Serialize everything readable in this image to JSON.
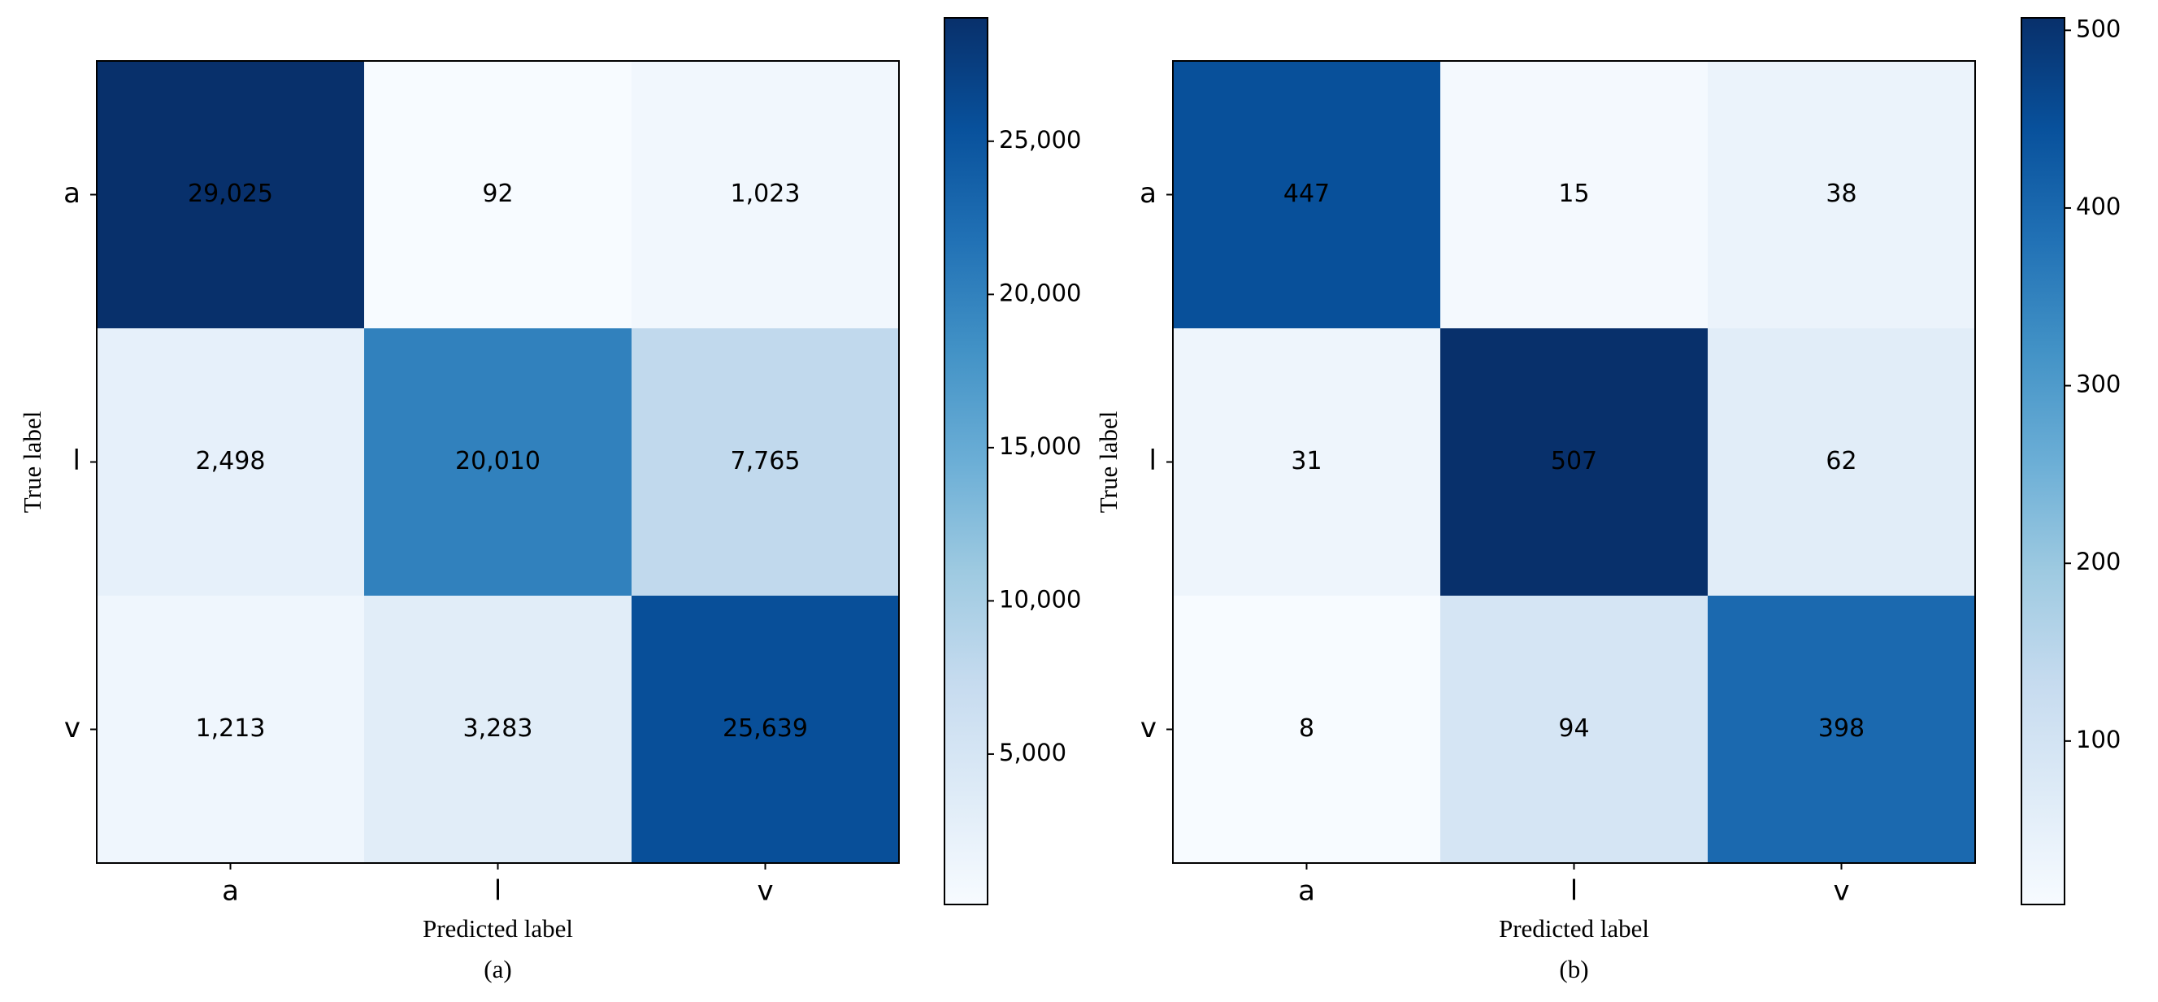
{
  "chart_data": [
    {
      "type": "heatmap",
      "colormap": "Blues",
      "x_categories": [
        "a",
        "l",
        "v"
      ],
      "y_categories": [
        "a",
        "l",
        "v"
      ],
      "values": [
        [
          29025,
          92,
          1023
        ],
        [
          2498,
          20010,
          7765
        ],
        [
          1213,
          3283,
          25639
        ]
      ],
      "value_labels": [
        [
          "29,025",
          "92",
          "1,023"
        ],
        [
          "2,498",
          "20,010",
          "7,765"
        ],
        [
          "1,213",
          "3,283",
          "25,639"
        ]
      ],
      "xlabel": "Predicted label",
      "ylabel": "True label",
      "caption": "(a)",
      "clim": [
        92,
        29025
      ],
      "cticks": [
        {
          "value": 5000,
          "label": "5,000"
        },
        {
          "value": 10000,
          "label": "10,000"
        },
        {
          "value": 15000,
          "label": "15,000"
        },
        {
          "value": 20000,
          "label": "20,000"
        },
        {
          "value": 25000,
          "label": "25,000"
        }
      ]
    },
    {
      "type": "heatmap",
      "colormap": "Blues",
      "x_categories": [
        "a",
        "l",
        "v"
      ],
      "y_categories": [
        "a",
        "l",
        "v"
      ],
      "values": [
        [
          447,
          15,
          38
        ],
        [
          31,
          507,
          62
        ],
        [
          8,
          94,
          398
        ]
      ],
      "xlabel": "Predicted label",
      "ylabel": "True label",
      "caption": "(b)",
      "clim": [
        8,
        507
      ],
      "cticks": [
        100,
        200,
        300,
        400,
        500
      ]
    }
  ]
}
